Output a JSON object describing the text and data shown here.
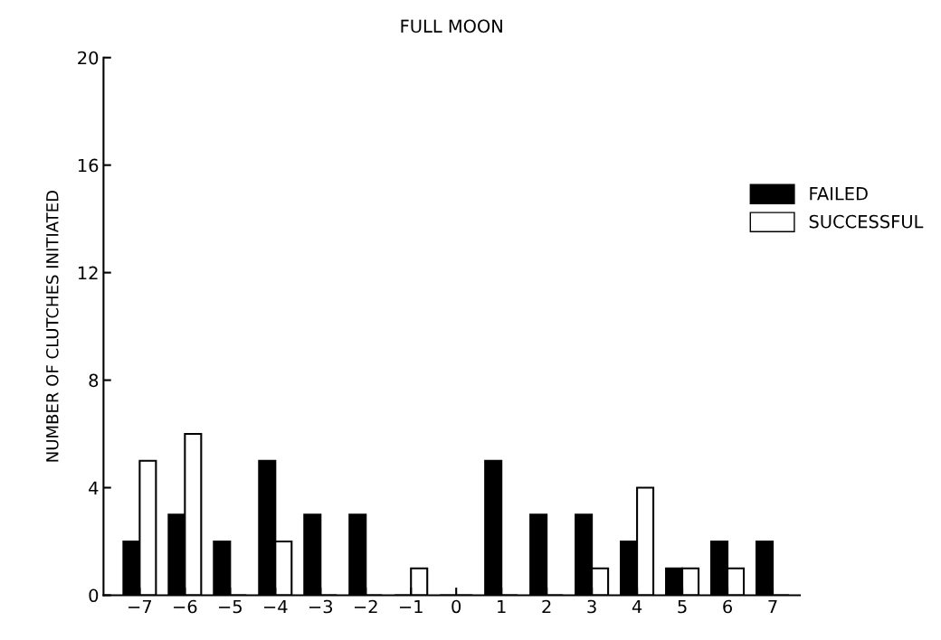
{
  "chart_data": {
    "type": "bar",
    "title": "FULL MOON",
    "ylabel": "NUMBER OF CLUTCHES INITIATED",
    "categories": [
      "−7",
      "−6",
      "−5",
      "−4",
      "−3",
      "−2",
      "−1",
      "0",
      "1",
      "2",
      "3",
      "4",
      "5",
      "6",
      "7"
    ],
    "series": [
      {
        "name": "FAILED",
        "color": "#000000",
        "values": [
          2,
          3,
          2,
          5,
          3,
          3,
          0,
          0,
          5,
          3,
          3,
          2,
          1,
          2,
          2
        ]
      },
      {
        "name": "SUCCESSFUL",
        "color": "#ffffff",
        "values": [
          5,
          6,
          0,
          2,
          0,
          0,
          1,
          0,
          0,
          0,
          1,
          4,
          1,
          1,
          0
        ]
      }
    ],
    "ylim": [
      0,
      20
    ],
    "yticks": [
      0,
      4,
      8,
      12,
      16,
      20
    ],
    "grid": false,
    "legend": "right"
  }
}
